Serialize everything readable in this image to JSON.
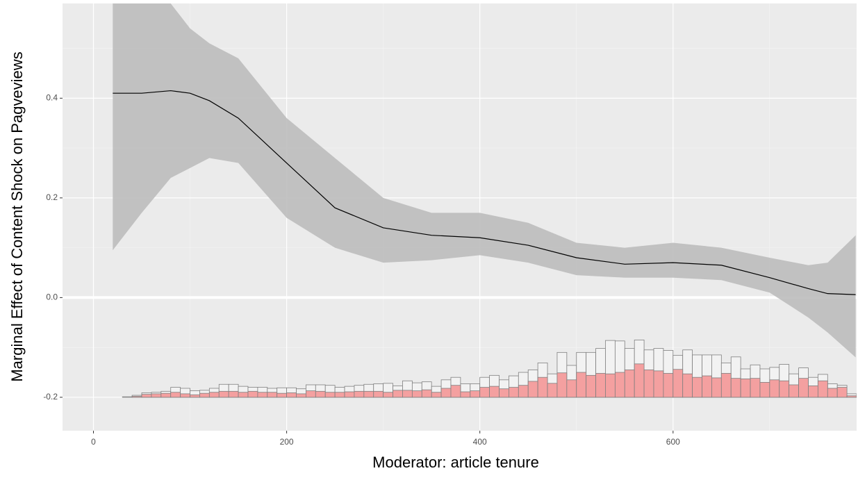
{
  "chart_data": {
    "type": "line",
    "xlabel": "Moderator: article tenure",
    "ylabel": "Marginal Effect of Content Shock on Pagveviews",
    "xlim": [
      -32,
      790
    ],
    "ylim": [
      -0.267,
      0.59
    ],
    "xticks": [
      0,
      200,
      400,
      600
    ],
    "yticks": [
      -0.2,
      {
        "value": 0,
        "label": "0.0"
      },
      0.2,
      0.4
    ],
    "grid": true,
    "panel_color": "#ebebeb",
    "line_color": "#000000",
    "band_color": "#bdbdbd",
    "zero_line": 0,
    "x": [
      20,
      30,
      50,
      80,
      100,
      120,
      150,
      200,
      250,
      300,
      350,
      400,
      450,
      500,
      550,
      600,
      650,
      700,
      740,
      760,
      789
    ],
    "values": [
      0.41,
      0.41,
      0.41,
      0.415,
      0.41,
      0.395,
      0.36,
      0.27,
      0.18,
      0.14,
      0.125,
      0.12,
      0.105,
      0.08,
      0.067,
      0.07,
      0.065,
      0.04,
      0.018,
      0.008,
      0.006
    ],
    "upper": [
      0.66,
      0.64,
      0.62,
      0.59,
      0.54,
      0.51,
      0.48,
      0.36,
      0.28,
      0.2,
      0.17,
      0.17,
      0.15,
      0.11,
      0.1,
      0.11,
      0.1,
      0.08,
      0.065,
      0.07,
      0.125
    ],
    "lower": [
      0.095,
      0.12,
      0.17,
      0.24,
      0.26,
      0.28,
      0.27,
      0.16,
      0.1,
      0.07,
      0.075,
      0.085,
      0.07,
      0.045,
      0.04,
      0.04,
      0.035,
      0.01,
      -0.04,
      -0.07,
      -0.12
    ],
    "histogram": {
      "base": -0.2,
      "bins": [
        10,
        20,
        30,
        40,
        50,
        60,
        70,
        80,
        90,
        100,
        110,
        120,
        130,
        140,
        150,
        160,
        170,
        180,
        190,
        200,
        210,
        220,
        230,
        240,
        250,
        260,
        270,
        280,
        290,
        300,
        310,
        320,
        330,
        340,
        350,
        360,
        370,
        380,
        390,
        400,
        410,
        420,
        430,
        440,
        450,
        460,
        470,
        480,
        490,
        500,
        510,
        520,
        530,
        540,
        550,
        560,
        570,
        580,
        590,
        600,
        610,
        620,
        630,
        640,
        650,
        660,
        670,
        680,
        690,
        700,
        710,
        720,
        730,
        740,
        750,
        760,
        770,
        780,
        790
      ],
      "total_color": "#f2f2f2",
      "treated_color": "#f4a0a0",
      "edge_color": "#7f7f7f",
      "total": [
        -0.2,
        -0.2,
        -0.199,
        -0.196,
        -0.191,
        -0.19,
        -0.188,
        -0.18,
        -0.182,
        -0.187,
        -0.186,
        -0.182,
        -0.174,
        -0.174,
        -0.178,
        -0.18,
        -0.18,
        -0.182,
        -0.181,
        -0.181,
        -0.183,
        -0.175,
        -0.175,
        -0.176,
        -0.18,
        -0.178,
        -0.176,
        -0.174,
        -0.173,
        -0.172,
        -0.177,
        -0.167,
        -0.171,
        -0.169,
        -0.178,
        -0.165,
        -0.16,
        -0.173,
        -0.173,
        -0.16,
        -0.156,
        -0.165,
        -0.157,
        -0.15,
        -0.145,
        -0.131,
        -0.153,
        -0.11,
        -0.136,
        -0.11,
        -0.11,
        -0.102,
        -0.086,
        -0.087,
        -0.102,
        -0.085,
        -0.105,
        -0.102,
        -0.106,
        -0.116,
        -0.105,
        -0.115,
        -0.115,
        -0.115,
        -0.131,
        -0.119,
        -0.143,
        -0.135,
        -0.143,
        -0.14,
        -0.134,
        -0.153,
        -0.141,
        -0.16,
        -0.154,
        -0.173,
        -0.176,
        -0.193
      ],
      "treated": [
        -0.2,
        -0.2,
        -0.2,
        -0.198,
        -0.194,
        -0.193,
        -0.192,
        -0.19,
        -0.193,
        -0.195,
        -0.192,
        -0.19,
        -0.188,
        -0.188,
        -0.19,
        -0.188,
        -0.19,
        -0.19,
        -0.192,
        -0.191,
        -0.193,
        -0.187,
        -0.188,
        -0.19,
        -0.19,
        -0.189,
        -0.188,
        -0.188,
        -0.188,
        -0.19,
        -0.186,
        -0.186,
        -0.187,
        -0.185,
        -0.19,
        -0.182,
        -0.176,
        -0.189,
        -0.187,
        -0.18,
        -0.178,
        -0.183,
        -0.18,
        -0.176,
        -0.168,
        -0.16,
        -0.172,
        -0.151,
        -0.165,
        -0.15,
        -0.156,
        -0.152,
        -0.153,
        -0.15,
        -0.145,
        -0.133,
        -0.145,
        -0.147,
        -0.152,
        -0.144,
        -0.153,
        -0.16,
        -0.157,
        -0.161,
        -0.152,
        -0.162,
        -0.163,
        -0.162,
        -0.17,
        -0.165,
        -0.167,
        -0.175,
        -0.162,
        -0.177,
        -0.167,
        -0.182,
        -0.18,
        -0.197
      ]
    }
  }
}
